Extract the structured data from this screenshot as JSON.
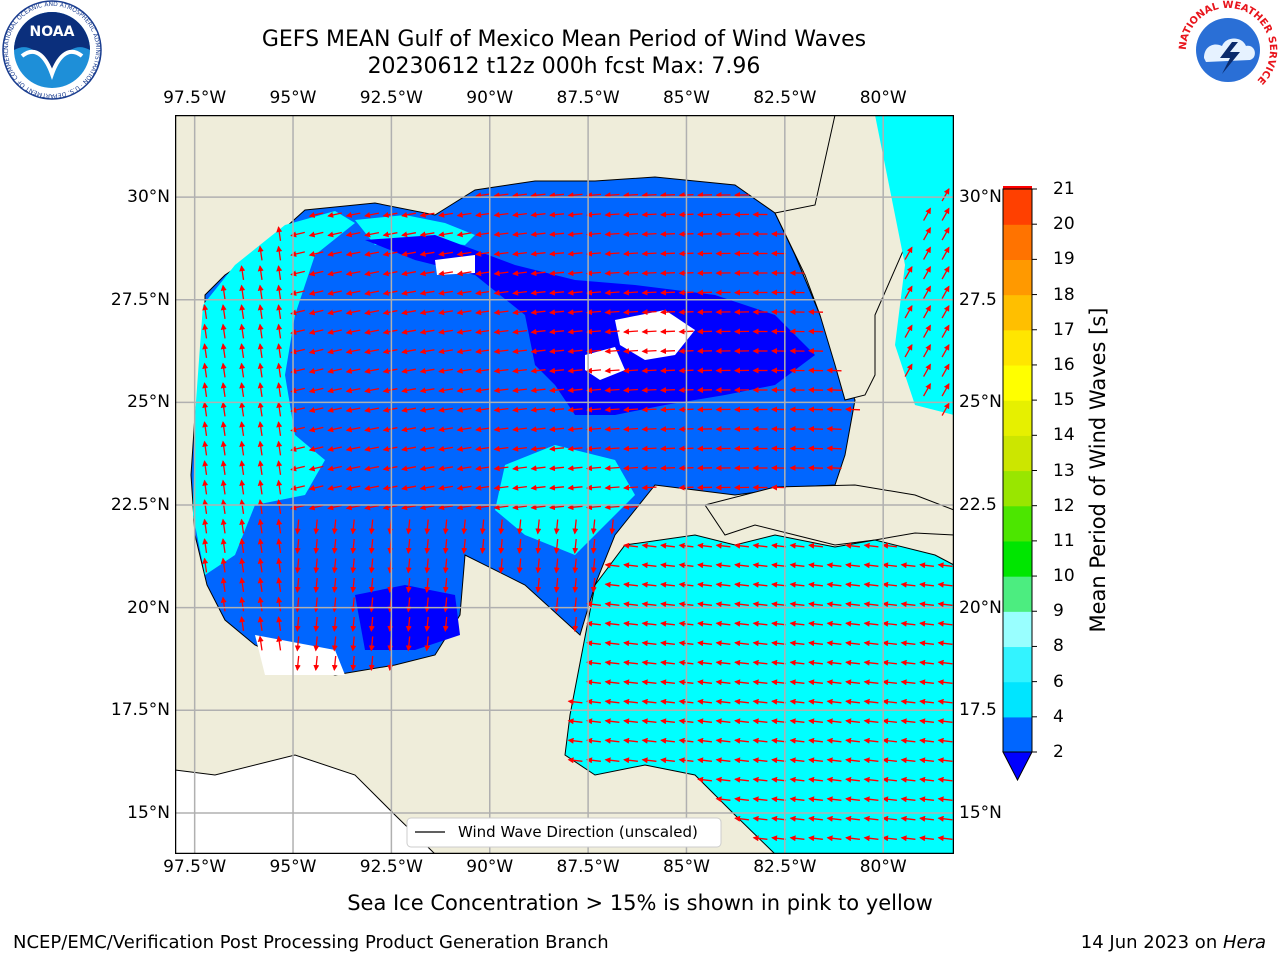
{
  "header": {
    "title_line1": "GEFS MEAN Gulf of Mexico Mean Period of Wind Waves",
    "title_line2": "20230612 t12z 000h fcst   Max: 7.96"
  },
  "logos": {
    "noaa_text": "NOAA",
    "noaa_ring_text": "NATIONAL OCEANIC AND ATMOSPHERIC ADMINISTRATION · U.S. DEPARTMENT OF COMMERCE",
    "nws_ring_text": "NATIONAL WEATHER SERVICE"
  },
  "map": {
    "lon_ticks": [
      "97.5°W",
      "95°W",
      "92.5°W",
      "90°W",
      "87.5°W",
      "85°W",
      "82.5°W",
      "80°W"
    ],
    "lat_ticks_left": [
      "30°N",
      "27.5°N",
      "25°N",
      "22.5°N",
      "20°N",
      "17.5°N",
      "15°N"
    ],
    "lat_ticks_right": [
      "30°N",
      "27.5",
      "25°N",
      "22.5",
      "20°N",
      "17.5",
      "15°N"
    ],
    "lon_range": [
      -98.0,
      -78.2
    ],
    "lat_range": [
      14.0,
      32.0
    ],
    "legend_label": "Wind Wave Direction (unscaled)",
    "land_color": "#efedda",
    "arrow_color": "#ff0000"
  },
  "colorbar": {
    "label": "Mean Period of Wind Waves [s]",
    "ticks": [
      "2",
      "4",
      "6",
      "8",
      "9",
      "10",
      "11",
      "12",
      "13",
      "14",
      "15",
      "16",
      "17",
      "18",
      "19",
      "20",
      "21"
    ],
    "colors": [
      "#0066ff",
      "#00e5ff",
      "#33f3ff",
      "#99ffff",
      "#4ced80",
      "#00e600",
      "#4ce600",
      "#99e600",
      "#cce600",
      "#e6f000",
      "#ffff00",
      "#ffe600",
      "#ffbf00",
      "#ff9900",
      "#ff7300",
      "#ff4000",
      "#ff0000"
    ],
    "under_color": "#0000ff"
  },
  "captions": {
    "sea_ice": "Sea Ice Concentration > 15% is shown in pink to yellow",
    "credit": "NCEP/EMC/Verification Post Processing Product Generation Branch",
    "date": "14 Jun 2023 on ",
    "host": "Hera"
  }
}
